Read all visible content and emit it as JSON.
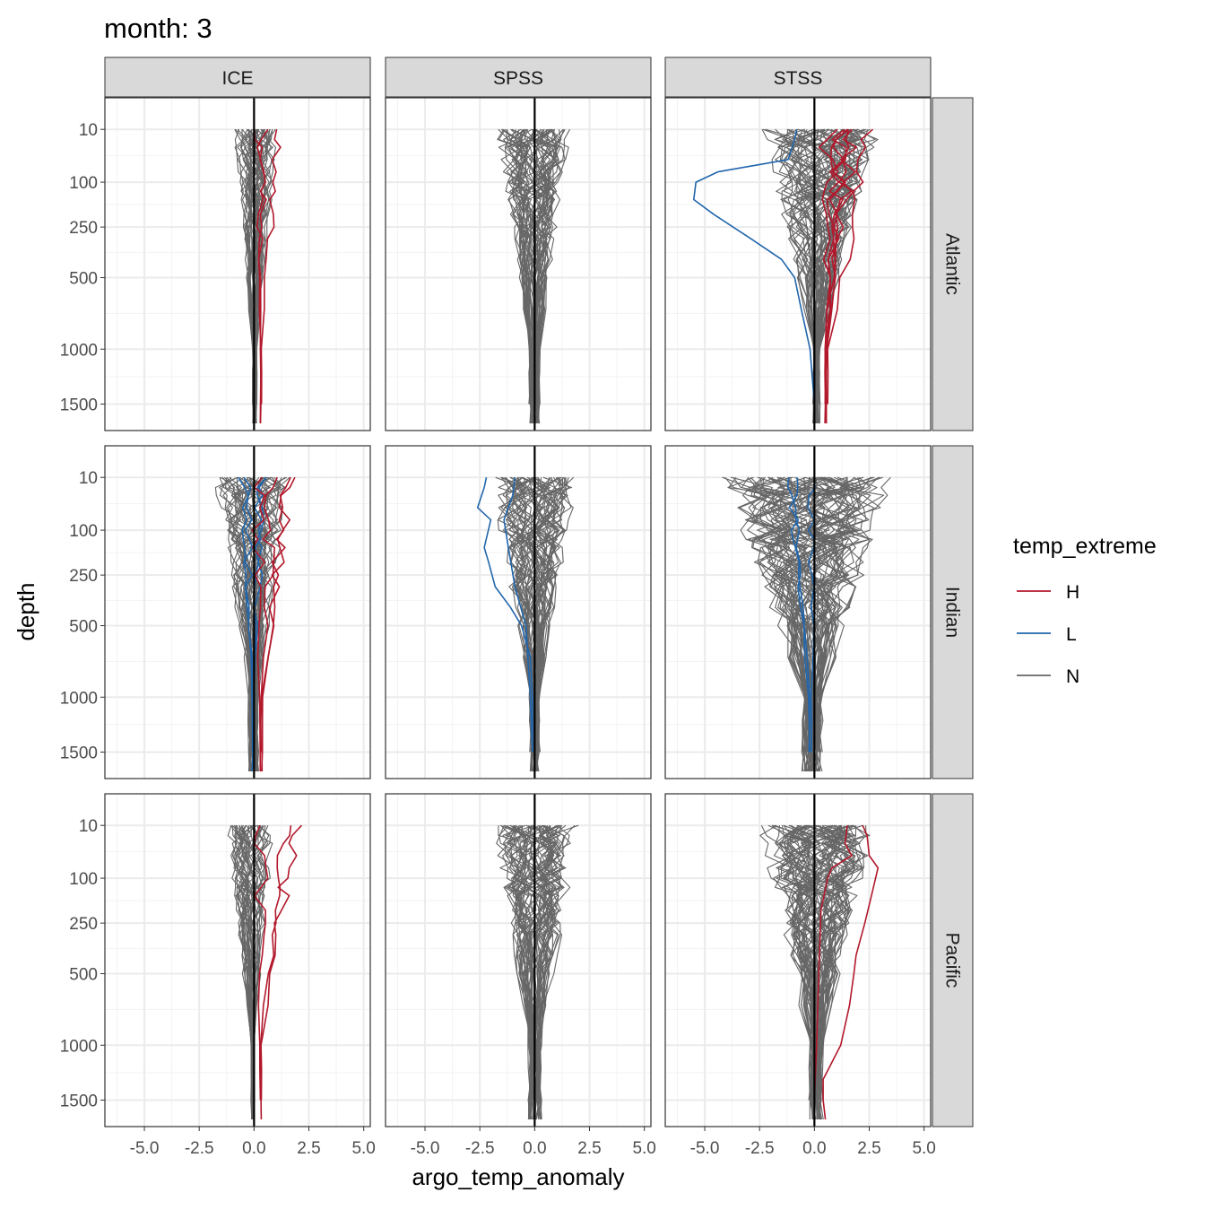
{
  "chart_data": {
    "type": "line",
    "title": "month: 3",
    "xlabel": "argo_temp_anomaly",
    "ylabel": "depth",
    "xlim": [
      -6.8,
      5.3
    ],
    "x_ticks": [
      -5.0,
      -2.5,
      0.0,
      2.5,
      5.0
    ],
    "x_tick_labels": [
      "-5.0",
      "-2.5",
      "0.0",
      "2.5",
      "5.0"
    ],
    "y_transform": "sqrt",
    "ylim": [
      0,
      1700
    ],
    "y_ticks": [
      10,
      100,
      250,
      500,
      1000,
      1500
    ],
    "y_tick_labels": [
      "10",
      "100",
      "250",
      "500",
      "1000",
      "1500"
    ],
    "profile_depths": [
      10,
      20,
      30,
      50,
      75,
      100,
      125,
      150,
      200,
      250,
      300,
      400,
      500,
      700,
      1000,
      1200,
      1500,
      1700
    ],
    "facet_cols": [
      "ICE",
      "SPSS",
      "STSS"
    ],
    "facet_rows": [
      "Atlantic",
      "Indian",
      "Pacific"
    ],
    "vline_x": 0,
    "legend": {
      "title": "temp_extreme",
      "entries": [
        {
          "label": "H",
          "color": "#b2182b"
        },
        {
          "label": "L",
          "color": "#2166ac"
        },
        {
          "label": "N",
          "color": "#666666"
        }
      ]
    },
    "panels": [
      {
        "row": "Atlantic",
        "col": "ICE",
        "series": [
          {
            "group": "H",
            "count": 3,
            "spread_surface": 1.3,
            "spread_deep": 0.05,
            "offset": 1.1
          },
          {
            "group": "N",
            "count": 40,
            "spread_surface": 1.3,
            "spread_deep": 0.15,
            "offset": 0.1
          }
        ]
      },
      {
        "row": "Atlantic",
        "col": "SPSS",
        "series": [
          {
            "group": "N",
            "count": 55,
            "spread_surface": 2.2,
            "spread_deep": 0.3,
            "offset": 0.0
          }
        ]
      },
      {
        "row": "Atlantic",
        "col": "STSS",
        "series": [
          {
            "group": "H",
            "count": 7,
            "spread_surface": 2.0,
            "spread_deep": 0.1,
            "offset": 1.8
          },
          {
            "group": "L",
            "points": [
              [
                -0.8,
                10
              ],
              [
                -0.9,
                20
              ],
              [
                -1.2,
                50
              ],
              [
                -4.4,
                75
              ],
              [
                -5.4,
                100
              ],
              [
                -5.5,
                150
              ],
              [
                -4.6,
                200
              ],
              [
                -2.9,
                300
              ],
              [
                -1.5,
                400
              ],
              [
                -0.9,
                500
              ],
              [
                -0.6,
                700
              ],
              [
                -0.2,
                1000
              ],
              [
                0.0,
                1500
              ]
            ]
          },
          {
            "group": "N",
            "count": 60,
            "spread_surface": 3.5,
            "spread_deep": 0.2,
            "offset": 0.3
          }
        ]
      },
      {
        "row": "Indian",
        "col": "ICE",
        "series": [
          {
            "group": "H",
            "count": 4,
            "spread_surface": 1.6,
            "spread_deep": 0.1,
            "offset": 1.1
          },
          {
            "group": "L",
            "count": 4,
            "spread_surface": 1.2,
            "spread_deep": 0.1,
            "offset": -0.2
          },
          {
            "group": "N",
            "count": 45,
            "spread_surface": 2.2,
            "spread_deep": 0.3,
            "offset": -0.1
          }
        ]
      },
      {
        "row": "Indian",
        "col": "SPSS",
        "series": [
          {
            "group": "L",
            "points": [
              [
                -2.2,
                10
              ],
              [
                -2.3,
                20
              ],
              [
                -2.6,
                50
              ],
              [
                -2.0,
                75
              ],
              [
                -2.3,
                150
              ],
              [
                -2.1,
                200
              ],
              [
                -1.8,
                300
              ],
              [
                -1.1,
                400
              ],
              [
                -0.6,
                500
              ],
              [
                -0.2,
                700
              ],
              [
                -0.1,
                1000
              ],
              [
                -0.1,
                1500
              ]
            ]
          },
          {
            "group": "L",
            "points": [
              [
                -0.9,
                10
              ],
              [
                -1.0,
                30
              ],
              [
                -1.4,
                75
              ],
              [
                -1.2,
                150
              ],
              [
                -0.9,
                300
              ],
              [
                -0.4,
                500
              ],
              [
                -0.2,
                1000
              ],
              [
                -0.1,
                1500
              ]
            ]
          },
          {
            "group": "N",
            "count": 55,
            "spread_surface": 2.6,
            "spread_deep": 0.3,
            "offset": 0.0
          }
        ]
      },
      {
        "row": "Indian",
        "col": "STSS",
        "series": [
          {
            "group": "L",
            "count": 3,
            "spread_surface": 1.0,
            "spread_deep": 0.1,
            "offset": -0.6
          },
          {
            "group": "N",
            "count": 70,
            "spread_surface": 5.0,
            "spread_deep": 0.6,
            "offset": -0.3
          }
        ]
      },
      {
        "row": "Pacific",
        "col": "ICE",
        "series": [
          {
            "group": "H",
            "count": 3,
            "spread_surface": 1.6,
            "spread_deep": 0.05,
            "offset": 1.0
          },
          {
            "group": "N",
            "count": 35,
            "spread_surface": 1.5,
            "spread_deep": 0.1,
            "offset": -0.2
          }
        ]
      },
      {
        "row": "Pacific",
        "col": "SPSS",
        "series": [
          {
            "group": "N",
            "count": 55,
            "spread_surface": 2.6,
            "spread_deep": 0.4,
            "offset": 0.1
          }
        ]
      },
      {
        "row": "Pacific",
        "col": "STSS",
        "series": [
          {
            "group": "H",
            "points": [
              [
                2.2,
                10
              ],
              [
                2.4,
                20
              ],
              [
                2.5,
                50
              ],
              [
                2.9,
                75
              ],
              [
                2.6,
                150
              ],
              [
                2.3,
                250
              ],
              [
                1.9,
                400
              ],
              [
                1.8,
                500
              ],
              [
                1.6,
                700
              ],
              [
                1.2,
                1000
              ],
              [
                0.4,
                1300
              ],
              [
                0.4,
                1500
              ],
              [
                0.5,
                1700
              ]
            ]
          },
          {
            "group": "H",
            "points": [
              [
                1.5,
                10
              ],
              [
                1.4,
                30
              ],
              [
                1.7,
                50
              ],
              [
                0.8,
                75
              ],
              [
                0.6,
                100
              ],
              [
                0.3,
                200
              ],
              [
                0.2,
                500
              ],
              [
                0.1,
                1000
              ],
              [
                0.0,
                1500
              ]
            ]
          },
          {
            "group": "N",
            "count": 70,
            "spread_surface": 3.5,
            "spread_deep": 0.4,
            "offset": 0.2
          }
        ]
      }
    ]
  }
}
